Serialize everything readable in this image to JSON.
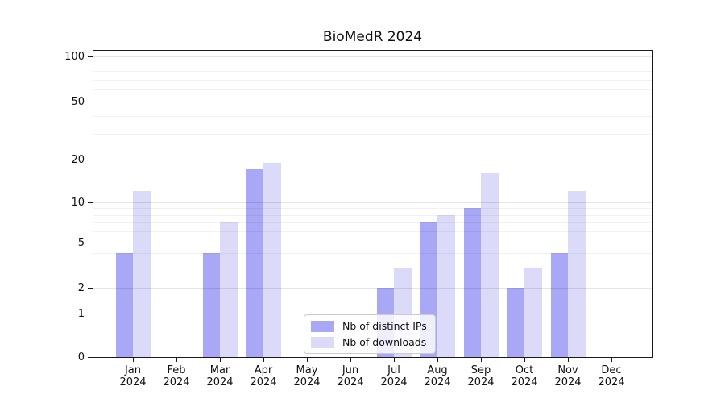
{
  "title": "BioMedR 2024",
  "chart_data": {
    "type": "bar",
    "title": "BioMedR 2024",
    "categories": [
      "Jan",
      "Feb",
      "Mar",
      "Apr",
      "May",
      "Jun",
      "Jul",
      "Aug",
      "Sep",
      "Oct",
      "Nov",
      "Dec"
    ],
    "x_tick_second_line": "2024",
    "series": [
      {
        "name": "Nb of distinct IPs",
        "color": "#a8a8f6",
        "values": [
          4,
          0,
          4,
          17,
          0,
          0,
          2,
          7,
          9,
          2,
          4,
          0
        ]
      },
      {
        "name": "Nb of downloads",
        "color": "#dbdbf9",
        "values": [
          12,
          0,
          7,
          19,
          0,
          0,
          3,
          8,
          16,
          3,
          12,
          0
        ]
      }
    ],
    "y_ticks": [
      0,
      1,
      2,
      5,
      10,
      20,
      50,
      100
    ],
    "y_minor_gridlines": [
      3,
      4,
      6,
      7,
      8,
      9,
      30,
      40,
      60,
      70,
      80,
      90
    ],
    "scale": "symlog-like",
    "ylim": [
      0,
      110
    ],
    "grid": "horizontal",
    "legend_position": "lower center",
    "xlabel": "",
    "ylabel": ""
  },
  "colors": {
    "bar_dark": "#a8a8f6",
    "bar_light": "#dbdbf9",
    "spine": "#1a1a1a",
    "grid_major": "#e6e6e6",
    "grid_minor": "#f1f1f1",
    "grid_unit_line": "#ababab",
    "background": "#ffffff"
  }
}
